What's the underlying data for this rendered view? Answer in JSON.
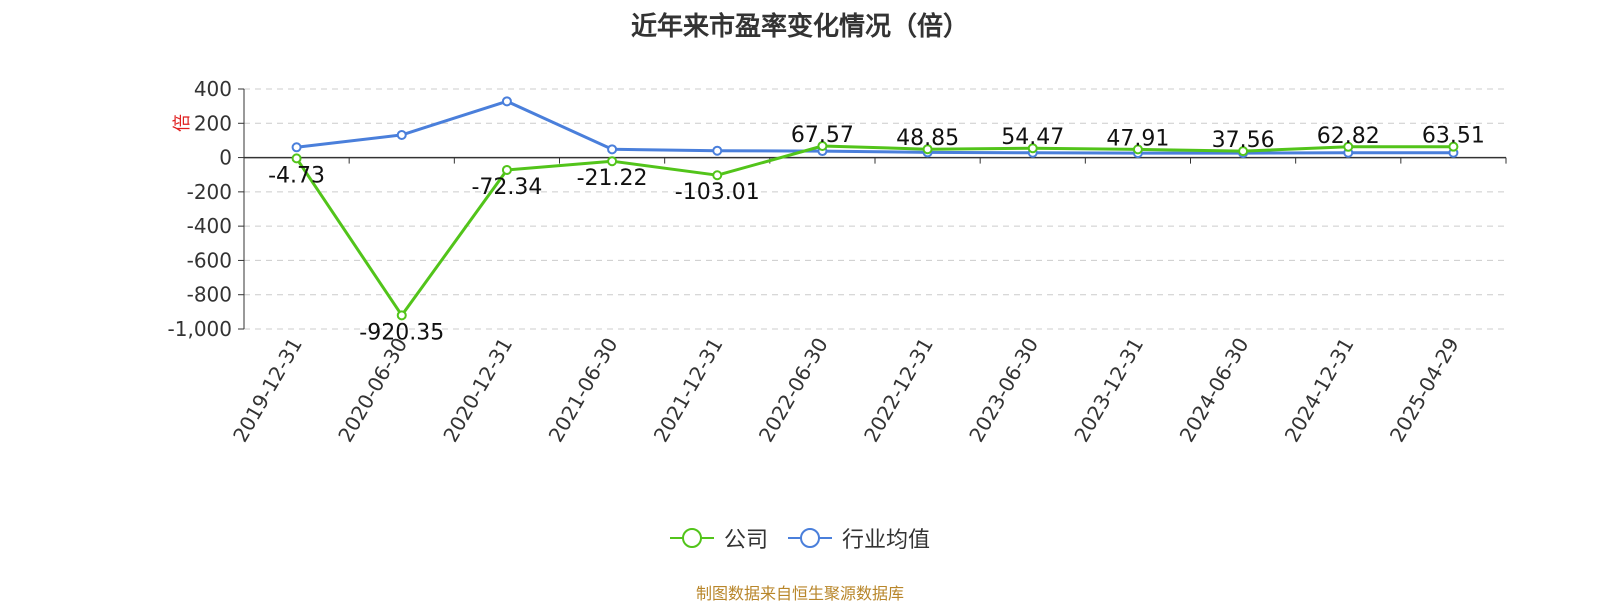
{
  "chart_data": {
    "type": "line",
    "title": "近年来市盈率变化情况（倍）",
    "ylabel": "倍",
    "categories": [
      "2019-12-31",
      "2020-06-30",
      "2020-12-31",
      "2021-06-30",
      "2021-12-31",
      "2022-06-30",
      "2022-12-31",
      "2023-06-30",
      "2023-12-31",
      "2024-06-30",
      "2024-12-31",
      "2025-04-29"
    ],
    "yticks": [
      "400",
      "200",
      "0",
      "-200",
      "-400",
      "-600",
      "-800",
      "-1,000"
    ],
    "ylim": [
      -1000,
      400
    ],
    "grid": true,
    "legend_position": "bottom",
    "series": [
      {
        "name": "公司",
        "color": "#52c41a",
        "values": [
          -4.73,
          -920.35,
          -72.34,
          -21.22,
          -103.01,
          67.57,
          48.85,
          54.47,
          47.91,
          37.56,
          62.82,
          63.51
        ],
        "labels": [
          "-4.73",
          "-920.35",
          "-72.34",
          "-21.22",
          "-103.01",
          "67.57",
          "48.85",
          "54.47",
          "47.91",
          "37.56",
          "62.82",
          "63.51"
        ]
      },
      {
        "name": "行业均值",
        "color": "#4a7fdb",
        "values": [
          60,
          132,
          328,
          48,
          40,
          38,
          30,
          28,
          26,
          26,
          28,
          28
        ]
      }
    ]
  },
  "source": "制图数据来自恒生聚源数据库"
}
